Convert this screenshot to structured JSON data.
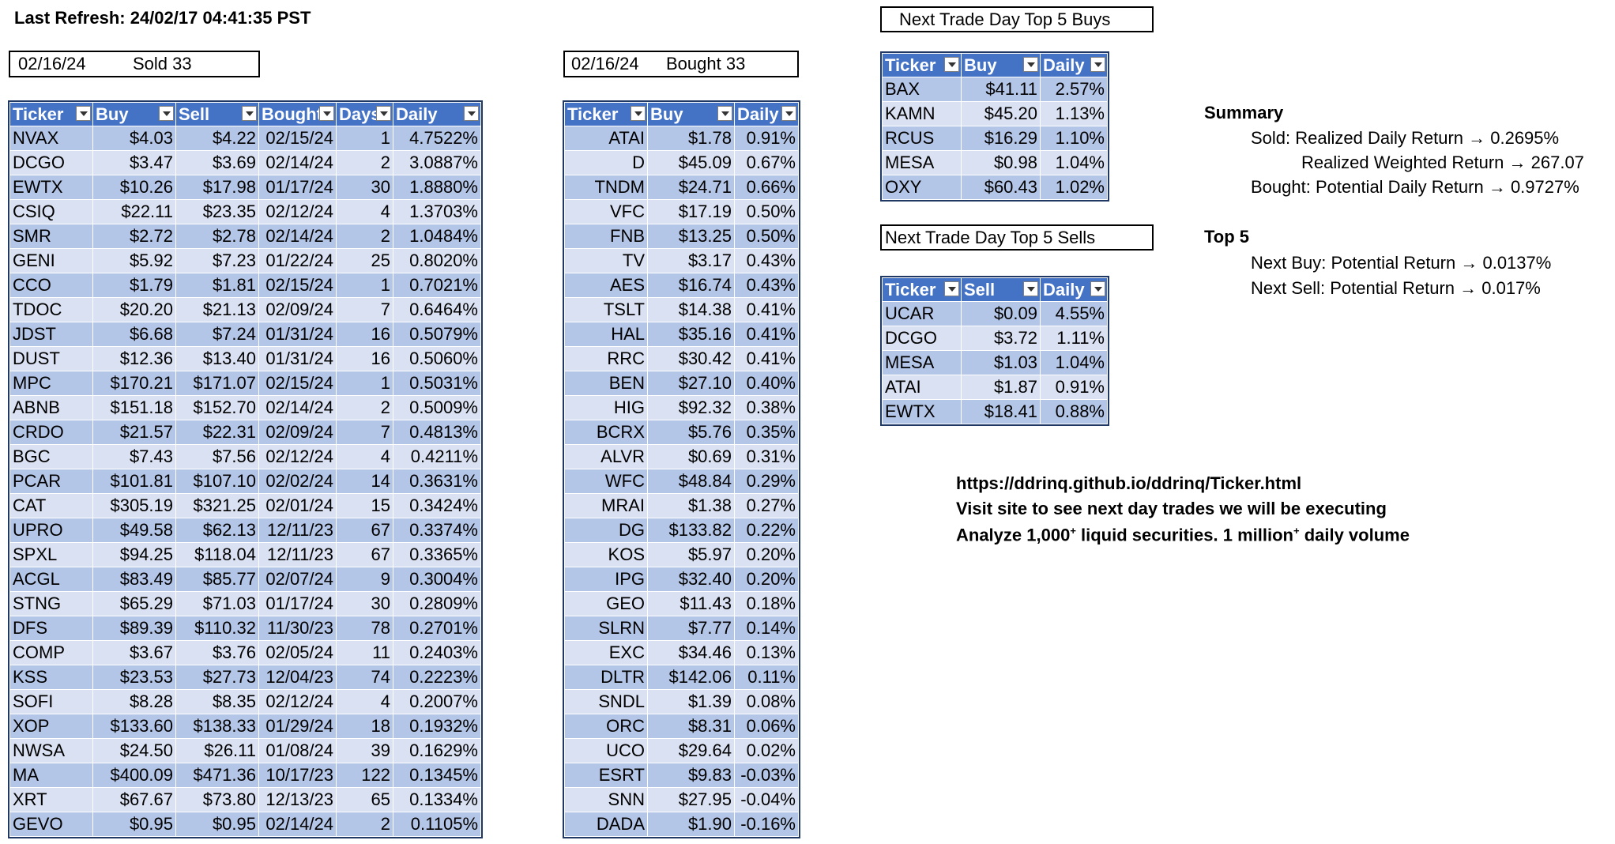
{
  "refresh": "Last Refresh: 24/02/17 04:41:35 PST",
  "sold_box": {
    "date": "02/16/24",
    "label": "Sold  33"
  },
  "bought_box": {
    "date": "02/16/24",
    "label": "Bought  33"
  },
  "next_buys_title": "Next Trade Day Top 5 Buys",
  "next_sells_title": "Next Trade Day Top 5 Sells",
  "sold_table": {
    "headers": [
      "Ticker",
      "Buy",
      "Sell",
      "Bought",
      "Days",
      "Daily"
    ],
    "rows": [
      [
        "NVAX",
        "$4.03",
        "$4.22",
        "02/15/24",
        "1",
        "4.7522%"
      ],
      [
        "DCGO",
        "$3.47",
        "$3.69",
        "02/14/24",
        "2",
        "3.0887%"
      ],
      [
        "EWTX",
        "$10.26",
        "$17.98",
        "01/17/24",
        "30",
        "1.8880%"
      ],
      [
        "CSIQ",
        "$22.11",
        "$23.35",
        "02/12/24",
        "4",
        "1.3703%"
      ],
      [
        "SMR",
        "$2.72",
        "$2.78",
        "02/14/24",
        "2",
        "1.0484%"
      ],
      [
        "GENI",
        "$5.92",
        "$7.23",
        "01/22/24",
        "25",
        "0.8020%"
      ],
      [
        "CCO",
        "$1.79",
        "$1.81",
        "02/15/24",
        "1",
        "0.7021%"
      ],
      [
        "TDOC",
        "$20.20",
        "$21.13",
        "02/09/24",
        "7",
        "0.6464%"
      ],
      [
        "JDST",
        "$6.68",
        "$7.24",
        "01/31/24",
        "16",
        "0.5079%"
      ],
      [
        "DUST",
        "$12.36",
        "$13.40",
        "01/31/24",
        "16",
        "0.5060%"
      ],
      [
        "MPC",
        "$170.21",
        "$171.07",
        "02/15/24",
        "1",
        "0.5031%"
      ],
      [
        "ABNB",
        "$151.18",
        "$152.70",
        "02/14/24",
        "2",
        "0.5009%"
      ],
      [
        "CRDO",
        "$21.57",
        "$22.31",
        "02/09/24",
        "7",
        "0.4813%"
      ],
      [
        "BGC",
        "$7.43",
        "$7.56",
        "02/12/24",
        "4",
        "0.4211%"
      ],
      [
        "PCAR",
        "$101.81",
        "$107.10",
        "02/02/24",
        "14",
        "0.3631%"
      ],
      [
        "CAT",
        "$305.19",
        "$321.25",
        "02/01/24",
        "15",
        "0.3424%"
      ],
      [
        "UPRO",
        "$49.58",
        "$62.13",
        "12/11/23",
        "67",
        "0.3374%"
      ],
      [
        "SPXL",
        "$94.25",
        "$118.04",
        "12/11/23",
        "67",
        "0.3365%"
      ],
      [
        "ACGL",
        "$83.49",
        "$85.77",
        "02/07/24",
        "9",
        "0.3004%"
      ],
      [
        "STNG",
        "$65.29",
        "$71.03",
        "01/17/24",
        "30",
        "0.2809%"
      ],
      [
        "DFS",
        "$89.39",
        "$110.32",
        "11/30/23",
        "78",
        "0.2701%"
      ],
      [
        "COMP",
        "$3.67",
        "$3.76",
        "02/05/24",
        "11",
        "0.2403%"
      ],
      [
        "KSS",
        "$23.53",
        "$27.73",
        "12/04/23",
        "74",
        "0.2223%"
      ],
      [
        "SOFI",
        "$8.28",
        "$8.35",
        "02/12/24",
        "4",
        "0.2007%"
      ],
      [
        "XOP",
        "$133.60",
        "$138.33",
        "01/29/24",
        "18",
        "0.1932%"
      ],
      [
        "NWSA",
        "$24.50",
        "$26.11",
        "01/08/24",
        "39",
        "0.1629%"
      ],
      [
        "MA",
        "$400.09",
        "$471.36",
        "10/17/23",
        "122",
        "0.1345%"
      ],
      [
        "XRT",
        "$67.67",
        "$73.80",
        "12/13/23",
        "65",
        "0.1334%"
      ],
      [
        "GEVO",
        "$0.95",
        "$0.95",
        "02/14/24",
        "2",
        "0.1105%"
      ]
    ]
  },
  "bought_table": {
    "headers": [
      "Ticker",
      "Buy",
      "Daily"
    ],
    "rows": [
      [
        "ATAI",
        "$1.78",
        "0.91%"
      ],
      [
        "D",
        "$45.09",
        "0.67%"
      ],
      [
        "TNDM",
        "$24.71",
        "0.66%"
      ],
      [
        "VFC",
        "$17.19",
        "0.50%"
      ],
      [
        "FNB",
        "$13.25",
        "0.50%"
      ],
      [
        "TV",
        "$3.17",
        "0.43%"
      ],
      [
        "AES",
        "$16.74",
        "0.43%"
      ],
      [
        "TSLT",
        "$14.38",
        "0.41%"
      ],
      [
        "HAL",
        "$35.16",
        "0.41%"
      ],
      [
        "RRC",
        "$30.42",
        "0.41%"
      ],
      [
        "BEN",
        "$27.10",
        "0.40%"
      ],
      [
        "HIG",
        "$92.32",
        "0.38%"
      ],
      [
        "BCRX",
        "$5.76",
        "0.35%"
      ],
      [
        "ALVR",
        "$0.69",
        "0.31%"
      ],
      [
        "WFC",
        "$48.84",
        "0.29%"
      ],
      [
        "MRAI",
        "$1.38",
        "0.27%"
      ],
      [
        "DG",
        "$133.82",
        "0.22%"
      ],
      [
        "KOS",
        "$5.97",
        "0.20%"
      ],
      [
        "IPG",
        "$32.40",
        "0.20%"
      ],
      [
        "GEO",
        "$11.43",
        "0.18%"
      ],
      [
        "SLRN",
        "$7.77",
        "0.14%"
      ],
      [
        "EXC",
        "$34.46",
        "0.13%"
      ],
      [
        "DLTR",
        "$142.06",
        "0.11%"
      ],
      [
        "SNDL",
        "$1.39",
        "0.08%"
      ],
      [
        "ORC",
        "$8.31",
        "0.06%"
      ],
      [
        "UCO",
        "$29.64",
        "0.02%"
      ],
      [
        "ESRT",
        "$9.83",
        "-0.03%"
      ],
      [
        "SNN",
        "$27.95",
        "-0.04%"
      ],
      [
        "DADA",
        "$1.90",
        "-0.16%"
      ]
    ]
  },
  "buys_table": {
    "headers": [
      "Ticker",
      "Buy",
      "Daily"
    ],
    "rows": [
      [
        "BAX",
        "$41.11",
        "2.57%"
      ],
      [
        "KAMN",
        "$45.20",
        "1.13%"
      ],
      [
        "RCUS",
        "$16.29",
        "1.10%"
      ],
      [
        "MESA",
        "$0.98",
        "1.04%"
      ],
      [
        "OXY",
        "$60.43",
        "1.02%"
      ]
    ]
  },
  "sells_table": {
    "headers": [
      "Ticker",
      "Sell",
      "Daily"
    ],
    "rows": [
      [
        "UCAR",
        "$0.09",
        "4.55%"
      ],
      [
        "DCGO",
        "$3.72",
        "1.11%"
      ],
      [
        "MESA",
        "$1.03",
        "1.04%"
      ],
      [
        "ATAI",
        "$1.87",
        "0.91%"
      ],
      [
        "EWTX",
        "$18.41",
        "0.88%"
      ]
    ]
  },
  "summary": {
    "heading": "Summary",
    "sold": "Sold: Realized Daily Return → 0.2695%",
    "weighted": "Realized Weighted Return → 267.07",
    "bought": "Bought: Potential Daily Return → 0.9727%"
  },
  "top5": {
    "heading": "Top 5",
    "next_buy": "Next Buy: Potential Return → 0.0137%",
    "next_sell": "Next Sell: Potential Return → 0.017%"
  },
  "notes": {
    "url": "https://ddrinq.github.io/ddrinq/Ticker.html",
    "visit": "Visit site to see next day trades we will be executing",
    "analyze_a": "Analyze 1,000",
    "analyze_sup1": "+",
    "analyze_b": " liquid securities.  1 million",
    "analyze_sup2": "+",
    "analyze_c": " daily volume"
  },
  "colors": {
    "header": "#4472c4",
    "band_dark": "#b4c6e7",
    "band_light": "#d9e1f2"
  }
}
